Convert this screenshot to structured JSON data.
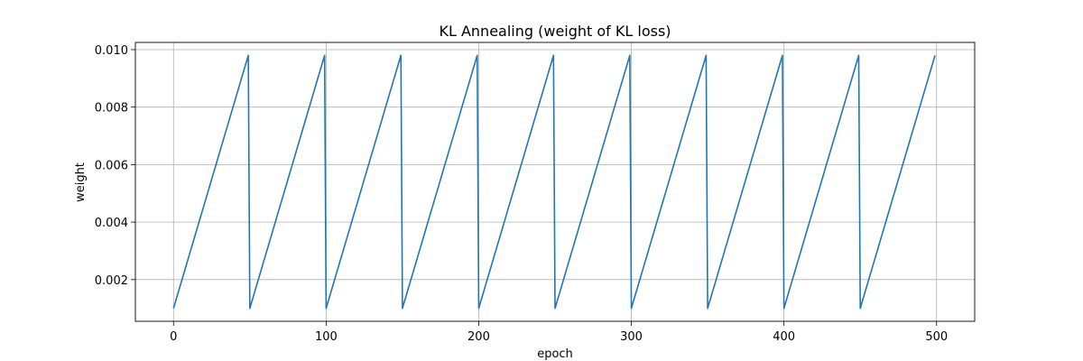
{
  "chart_data": {
    "type": "line",
    "title": "KL Annealing (weight of KL loss)",
    "xlabel": "epoch",
    "ylabel": "weight",
    "xlim": [
      -25,
      525
    ],
    "ylim": [
      0.00055,
      0.01025
    ],
    "xticks": [
      0,
      100,
      200,
      300,
      400,
      500
    ],
    "xtick_labels": [
      "0",
      "100",
      "200",
      "300",
      "400",
      "500"
    ],
    "yticks": [
      0.002,
      0.004,
      0.006,
      0.008,
      0.01
    ],
    "ytick_labels": [
      "0.002",
      "0.004",
      "0.006",
      "0.008",
      "0.010"
    ],
    "grid": true,
    "legend": "none",
    "series": [
      {
        "color": "#1f77b4",
        "x": [
          0,
          49,
          50,
          99,
          100,
          149,
          150,
          199,
          200,
          249,
          250,
          299,
          300,
          349,
          350,
          399,
          400,
          449,
          450,
          499
        ],
        "y": [
          0.001,
          0.0098,
          0.001,
          0.0098,
          0.001,
          0.0098,
          0.001,
          0.0098,
          0.001,
          0.0098,
          0.001,
          0.0098,
          0.001,
          0.0098,
          0.001,
          0.0098,
          0.001,
          0.0098,
          0.001,
          0.0098
        ]
      }
    ]
  }
}
